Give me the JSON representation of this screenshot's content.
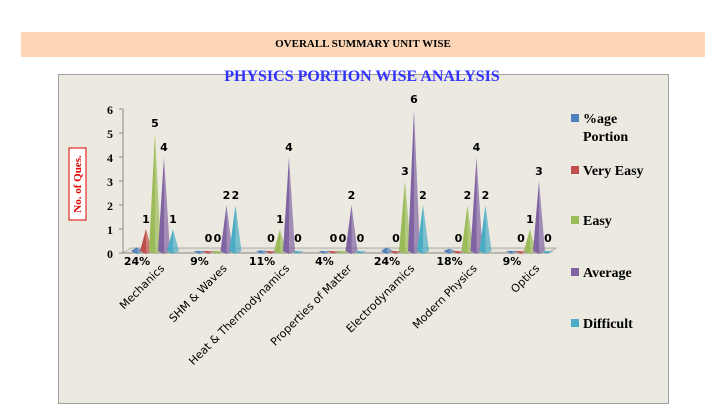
{
  "header": {
    "title": "OVERALL SUMMARY UNIT WISE"
  },
  "chart_data": {
    "type": "bar",
    "style": "3d-cone-spikes",
    "title": "PHYSICS PORTION WISE ANALYSIS",
    "ylabel": "No. of Ques.",
    "xlabel": "",
    "ylim": [
      0,
      6
    ],
    "yticks": [
      "0",
      "1",
      "2",
      "3",
      "4",
      "5",
      "6"
    ],
    "grid": false,
    "legend": "right",
    "categories": [
      "Mechanics",
      "SHM & Waves",
      "Heat & Thermodynamics",
      "Properties of Matter",
      "Electrodynamics",
      "Modern Physics",
      "Optics"
    ],
    "series": [
      {
        "name": "%age Portion",
        "color": "#4f81bd",
        "values": [
          0.24,
          0.09,
          0.11,
          0.04,
          0.24,
          0.18,
          0.09
        ],
        "labels": [
          "24%",
          "9%",
          "11%",
          "4%",
          "24%",
          "18%",
          "9%"
        ]
      },
      {
        "name": "Very Easy",
        "color": "#c0504d",
        "values": [
          1,
          0,
          0,
          0,
          0,
          0,
          0
        ],
        "labels": [
          "1",
          "0",
          "0",
          "0",
          "0",
          "0",
          "0"
        ]
      },
      {
        "name": "Easy",
        "color": "#9bbb59",
        "values": [
          5,
          0,
          1,
          0,
          3,
          2,
          1
        ],
        "labels": [
          "5",
          "0",
          "1",
          "0",
          "3",
          "2",
          "1"
        ]
      },
      {
        "name": "Average",
        "color": "#8064a2",
        "values": [
          4,
          2,
          4,
          2,
          6,
          4,
          3
        ],
        "labels": [
          "4",
          "2",
          "4",
          "2",
          "6",
          "4",
          "3"
        ]
      },
      {
        "name": "Difficult",
        "color": "#4bacc6",
        "values": [
          1,
          2,
          0,
          0,
          2,
          2,
          0
        ],
        "labels": [
          "1",
          "2",
          "0",
          "0",
          "2",
          "2",
          "0"
        ]
      }
    ]
  }
}
